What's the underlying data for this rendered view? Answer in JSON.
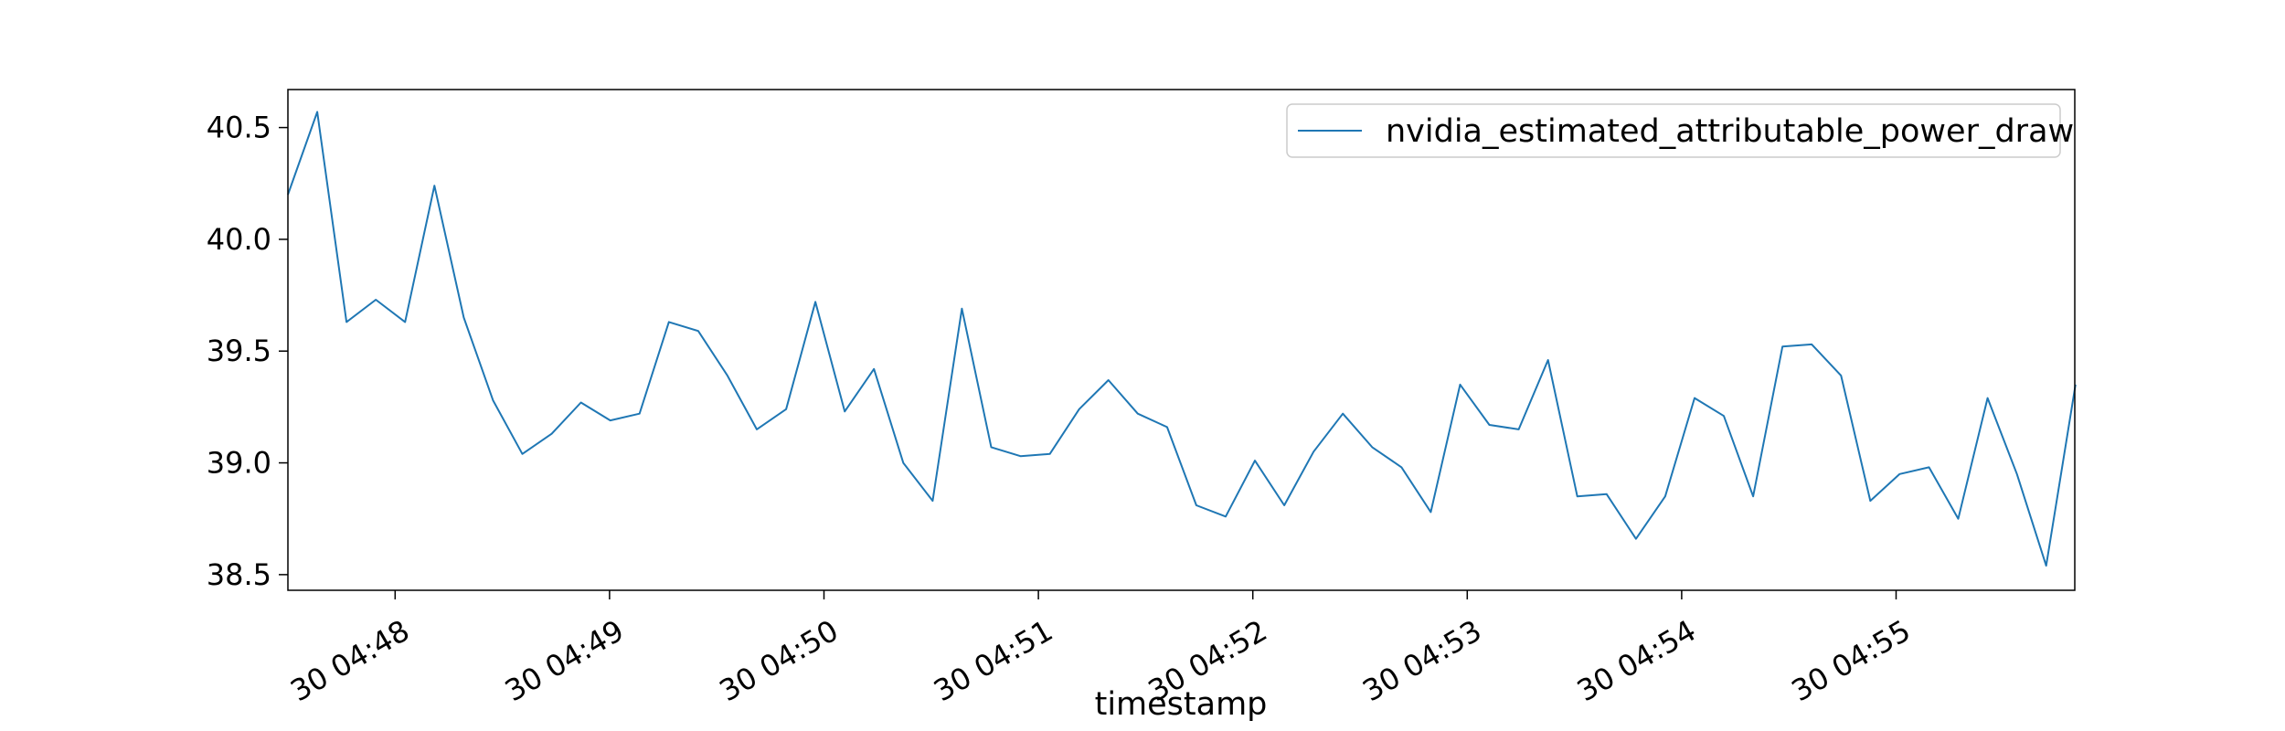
{
  "chart_data": {
    "type": "line",
    "title": "",
    "xlabel": "timestamp",
    "ylabel": "",
    "series": [
      {
        "name": "nvidia_estimated_attributable_power_draw",
        "color": "#1f77b4",
        "values": [
          40.2,
          40.57,
          39.63,
          39.73,
          39.63,
          40.24,
          39.65,
          39.28,
          39.04,
          39.13,
          39.27,
          39.19,
          39.22,
          39.63,
          39.59,
          39.39,
          39.15,
          39.24,
          39.72,
          39.23,
          39.42,
          39.0,
          38.83,
          39.69,
          39.07,
          39.03,
          39.04,
          39.24,
          39.37,
          39.22,
          39.16,
          38.81,
          38.76,
          39.01,
          38.81,
          39.05,
          39.22,
          39.07,
          38.98,
          38.78,
          39.35,
          39.17,
          39.15,
          39.46,
          38.85,
          38.86,
          38.66,
          38.85,
          39.29,
          39.21,
          38.85,
          39.52,
          39.53,
          39.39,
          38.83,
          38.95,
          38.98,
          38.75,
          39.29,
          38.95,
          38.54,
          39.35
        ]
      }
    ],
    "x_start": "30 04:47:30",
    "x_end": "30 04:55:50",
    "sample_interval_seconds": 8.2,
    "x_ticks": [
      {
        "label": "30 04:48",
        "time": "30 04:48:00"
      },
      {
        "label": "30 04:49",
        "time": "30 04:49:00"
      },
      {
        "label": "30 04:50",
        "time": "30 04:50:00"
      },
      {
        "label": "30 04:51",
        "time": "30 04:51:00"
      },
      {
        "label": "30 04:52",
        "time": "30 04:52:00"
      },
      {
        "label": "30 04:53",
        "time": "30 04:53:00"
      },
      {
        "label": "30 04:54",
        "time": "30 04:54:00"
      },
      {
        "label": "30 04:55",
        "time": "30 04:55:00"
      }
    ],
    "y_ticks": [
      {
        "label": "38.5",
        "value": 38.5
      },
      {
        "label": "39.0",
        "value": 39.0
      },
      {
        "label": "39.5",
        "value": 39.5
      },
      {
        "label": "40.0",
        "value": 40.0
      },
      {
        "label": "40.5",
        "value": 40.5
      }
    ],
    "ylim": [
      38.43,
      40.67
    ],
    "grid": false,
    "legend_position": "top-right"
  }
}
